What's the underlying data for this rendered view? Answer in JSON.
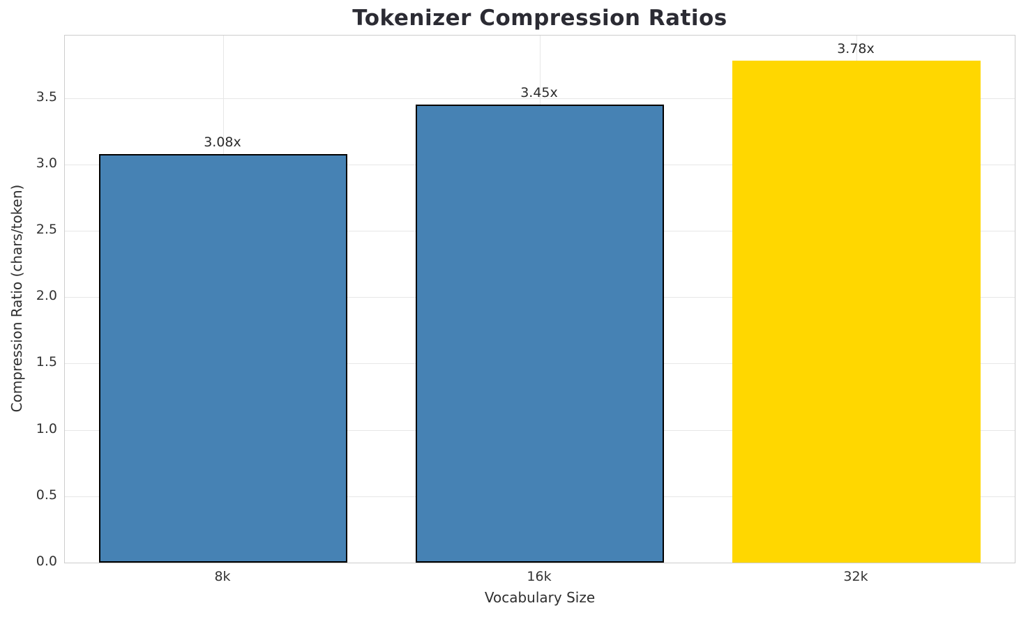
{
  "chart_data": {
    "type": "bar",
    "title": "Tokenizer Compression Ratios",
    "xlabel": "Vocabulary Size",
    "ylabel": "Compression Ratio (chars/token)",
    "categories": [
      "8k",
      "16k",
      "32k"
    ],
    "values": [
      3.08,
      3.45,
      3.78
    ],
    "value_labels": [
      "3.08x",
      "3.45x",
      "3.78x"
    ],
    "bar_colors": [
      "#4682b4",
      "#4682b4",
      "#ffd700"
    ],
    "bar_edge_colors": [
      "#000000",
      "#000000",
      "#ffd700"
    ],
    "yticks": [
      0.0,
      0.5,
      1.0,
      1.5,
      2.0,
      2.5,
      3.0,
      3.5
    ],
    "ytick_labels": [
      "0.0",
      "0.5",
      "1.0",
      "1.5",
      "2.0",
      "2.5",
      "3.0",
      "3.5"
    ],
    "ylim": [
      0,
      3.97
    ],
    "grid": true,
    "legend": false,
    "background_color": "#ffffff",
    "gridline_color": "#e7e7e7",
    "spine_color": "#cccccc"
  }
}
